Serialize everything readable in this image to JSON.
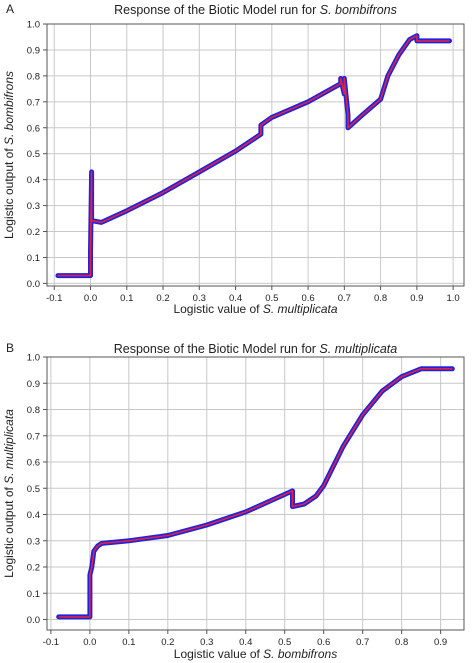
{
  "chart_data": [
    {
      "type": "line",
      "panel_label": "A",
      "title": {
        "pre": "Response of the Biotic Model run for ",
        "italic": "S. bombifrons"
      },
      "xlabel": {
        "pre": "Logistic value of ",
        "italic": "S. multiplicata"
      },
      "ylabel": {
        "pre": "Logistic output of ",
        "italic": "S. bombifrons"
      },
      "xlim": [
        -0.12,
        1.03
      ],
      "ylim": [
        -0.01,
        1.0
      ],
      "xticks": [
        "-0.1",
        "0.0",
        "0.1",
        "0.2",
        "0.3",
        "0.4",
        "0.5",
        "0.6",
        "0.7",
        "0.8",
        "0.9",
        "1.0"
      ],
      "xtick_values": [
        -0.1,
        0.0,
        0.1,
        0.2,
        0.3,
        0.4,
        0.5,
        0.6,
        0.7,
        0.8,
        0.9,
        1.0
      ],
      "yticks": [
        "0.0",
        "0.1",
        "0.2",
        "0.3",
        "0.4",
        "0.5",
        "0.6",
        "0.7",
        "0.8",
        "0.9",
        "1.0"
      ],
      "ytick_values": [
        0.0,
        0.1,
        0.2,
        0.3,
        0.4,
        0.5,
        0.6,
        0.7,
        0.8,
        0.9,
        1.0
      ],
      "grid": true,
      "colors": {
        "band": "#2222dd",
        "line": "#dd2244"
      },
      "series": [
        {
          "x": [
            -0.09,
            0.0,
            0.0,
            0.003,
            0.003,
            0.01,
            0.03,
            0.1,
            0.2,
            0.3,
            0.4,
            0.47,
            0.47,
            0.5,
            0.6,
            0.69,
            0.69,
            0.7,
            0.7,
            0.71,
            0.71,
            0.75,
            0.8,
            0.82,
            0.85,
            0.88,
            0.9,
            0.9,
            0.99
          ],
          "y": [
            0.03,
            0.03,
            0.12,
            0.43,
            0.24,
            0.24,
            0.235,
            0.28,
            0.35,
            0.43,
            0.51,
            0.575,
            0.61,
            0.64,
            0.7,
            0.77,
            0.79,
            0.73,
            0.79,
            0.65,
            0.6,
            0.65,
            0.71,
            0.8,
            0.88,
            0.94,
            0.955,
            0.935,
            0.935
          ]
        }
      ]
    },
    {
      "type": "line",
      "panel_label": "B",
      "title": {
        "pre": "Response of the Biotic Model run for ",
        "italic": "S. multiplicata"
      },
      "xlabel": {
        "pre": "Logistic value of ",
        "italic": "S. bombifrons"
      },
      "ylabel": {
        "pre": "Logistic output of ",
        "italic": "S. multiplicata"
      },
      "xlim": [
        -0.11,
        0.96
      ],
      "ylim": [
        -0.04,
        1.0
      ],
      "xticks": [
        "-0.1",
        "0.0",
        "0.1",
        "0.2",
        "0.3",
        "0.4",
        "0.5",
        "0.6",
        "0.7",
        "0.8",
        "0.9"
      ],
      "xtick_values": [
        -0.1,
        0.0,
        0.1,
        0.2,
        0.3,
        0.4,
        0.5,
        0.6,
        0.7,
        0.8,
        0.9
      ],
      "yticks": [
        "0.0",
        "0.1",
        "0.2",
        "0.3",
        "0.4",
        "0.5",
        "0.6",
        "0.7",
        "0.8",
        "0.9",
        "1.0"
      ],
      "ytick_values": [
        0.0,
        0.1,
        0.2,
        0.3,
        0.4,
        0.5,
        0.6,
        0.7,
        0.8,
        0.9,
        1.0
      ],
      "grid": true,
      "colors": {
        "band": "#2222dd",
        "line": "#dd2244"
      },
      "series": [
        {
          "x": [
            -0.08,
            0.0,
            0.0,
            0.005,
            0.01,
            0.02,
            0.03,
            0.1,
            0.2,
            0.3,
            0.4,
            0.52,
            0.52,
            0.55,
            0.58,
            0.6,
            0.65,
            0.7,
            0.75,
            0.8,
            0.85,
            0.93
          ],
          "y": [
            0.01,
            0.01,
            0.17,
            0.2,
            0.26,
            0.28,
            0.29,
            0.3,
            0.32,
            0.36,
            0.41,
            0.49,
            0.43,
            0.44,
            0.47,
            0.51,
            0.66,
            0.78,
            0.87,
            0.925,
            0.955,
            0.955
          ]
        }
      ]
    }
  ]
}
